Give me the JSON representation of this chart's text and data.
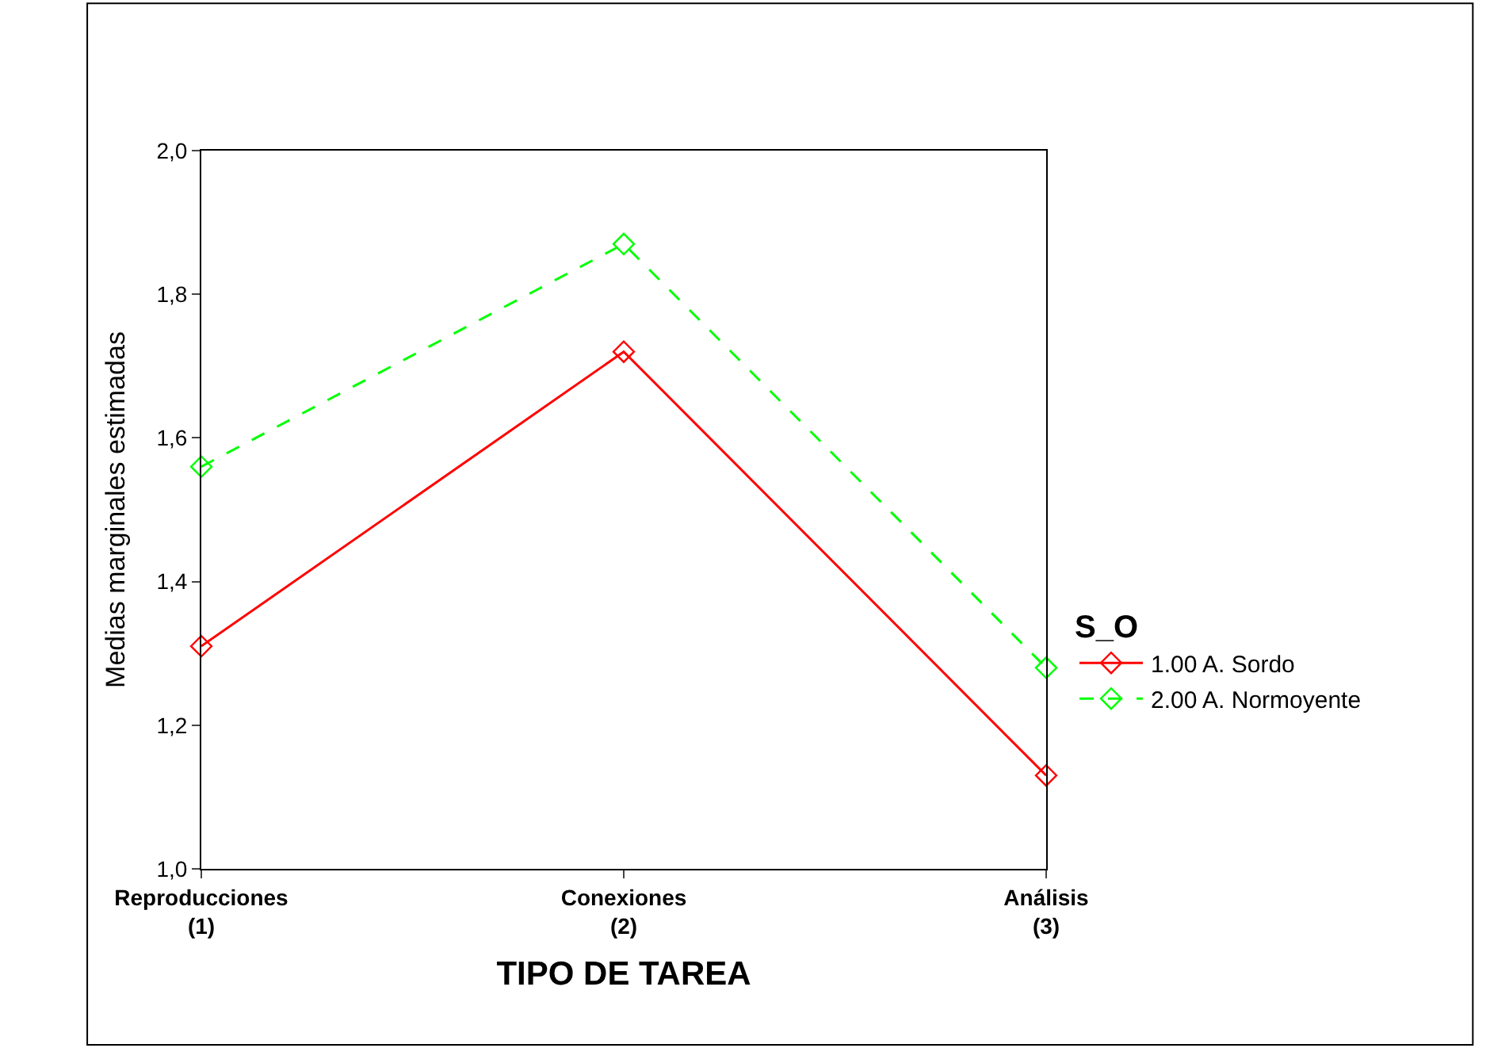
{
  "chart_data": {
    "type": "line",
    "xlabel": "TIPO DE TAREA",
    "ylabel": "Medias marginales estimadas",
    "legend_title": "S_O",
    "categories": [
      "Reproducciones\n(1)",
      "Conexiones\n(2)",
      "Análisis\n(3)"
    ],
    "series": [
      {
        "name": "1.00 A. Sordo",
        "color": "#ff0000",
        "values": [
          1.31,
          1.72,
          1.13
        ],
        "line_style": "solid"
      },
      {
        "name": "2.00 A. Normoyente",
        "color": "#00ff00",
        "values": [
          1.56,
          1.87,
          1.28
        ],
        "line_style": "dashed"
      }
    ],
    "ylim": [
      1.0,
      2.0
    ],
    "yticks": [
      {
        "value": 1.0,
        "label": "1,0"
      },
      {
        "value": 1.2,
        "label": "1,2"
      },
      {
        "value": 1.4,
        "label": "1,4"
      },
      {
        "value": 1.6,
        "label": "1,6"
      },
      {
        "value": 1.8,
        "label": "1,8"
      },
      {
        "value": 2.0,
        "label": "2,0"
      }
    ],
    "legend": "right",
    "marker": "diamond"
  }
}
